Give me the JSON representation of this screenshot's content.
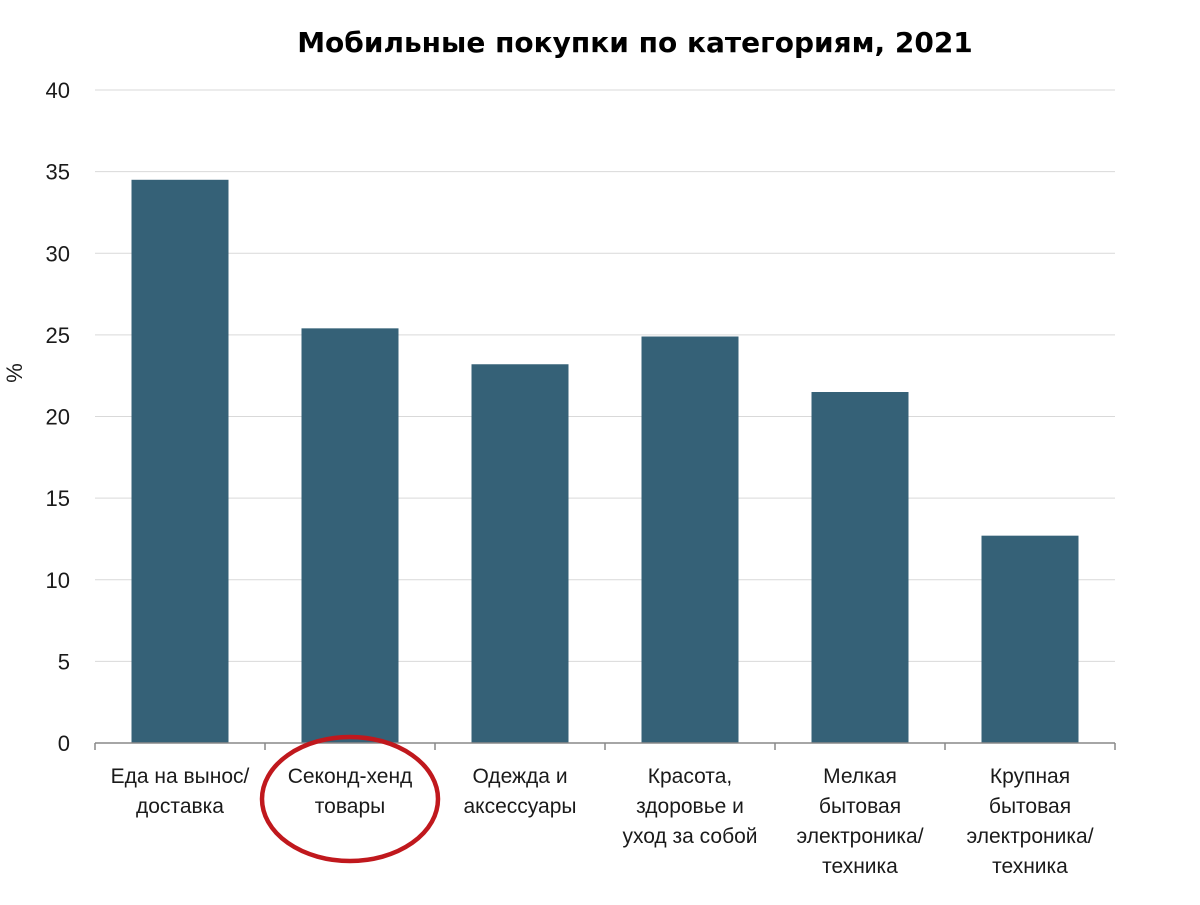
{
  "chart_data": {
    "type": "bar",
    "title": "Мобильные покупки по категориям, 2021",
    "xlabel": "",
    "ylabel": "%",
    "ylim": [
      0,
      40
    ],
    "yticks": [
      0,
      5,
      10,
      15,
      20,
      25,
      30,
      35,
      40
    ],
    "grid": true,
    "categories": [
      "Еда на вынос/ доставка",
      "Секонд-хенд товары",
      "Одежда и аксессуары",
      "Красота, здоровье и уход за собой",
      "Мелкая бытовая электроника/ техника",
      "Крупная бытовая электроника/ техника"
    ],
    "category_label_lines": [
      [
        "Еда на вынос/",
        "доставка"
      ],
      [
        "Секонд-хенд",
        "товары"
      ],
      [
        "Одежда и",
        "аксессуары"
      ],
      [
        "Красота,",
        "здоровье и",
        "уход за собой"
      ],
      [
        "Мелкая",
        "бытовая",
        "электроника/",
        "техника"
      ],
      [
        "Крупная",
        "бытовая",
        "электроника/",
        "техника"
      ]
    ],
    "values": [
      34.5,
      25.4,
      23.2,
      24.9,
      21.5,
      12.7
    ],
    "bar_color": "#356177",
    "highlight": {
      "category_index": 1,
      "shape": "ellipse",
      "color": "#c0181d"
    }
  }
}
